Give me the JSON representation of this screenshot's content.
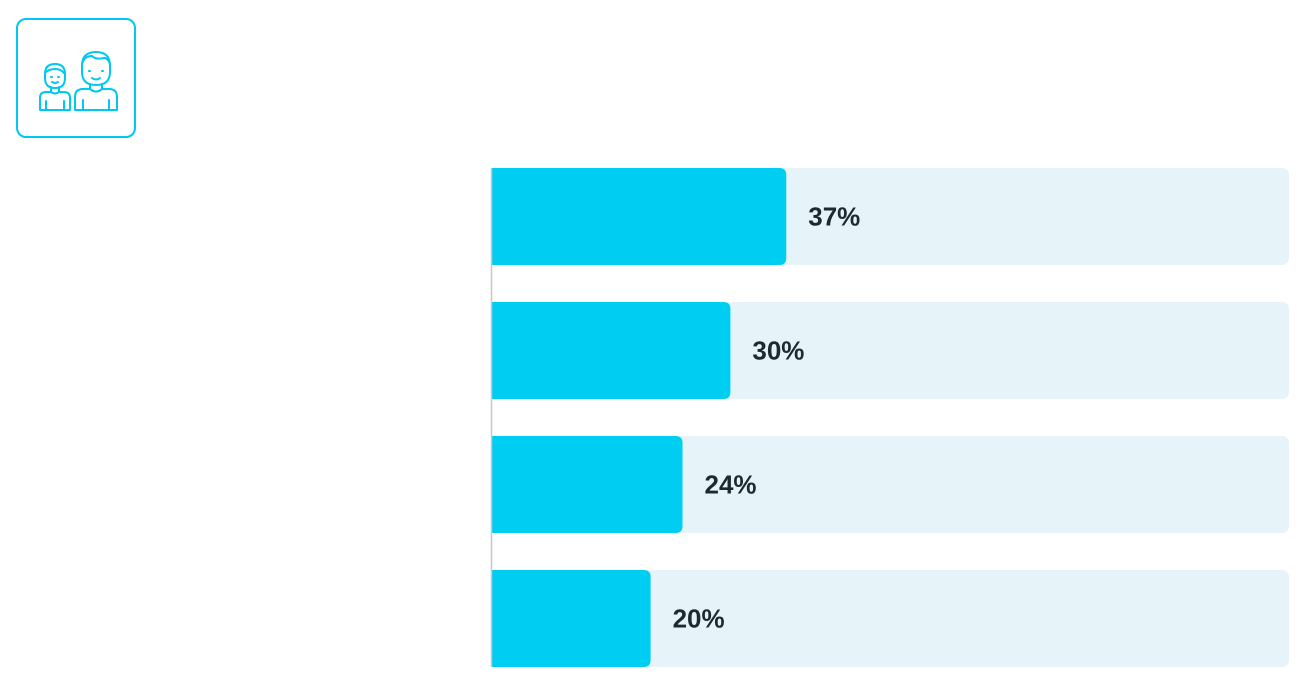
{
  "icon": {
    "name": "people-icon",
    "color": "#00c8f0"
  },
  "chart_data": {
    "type": "bar",
    "orientation": "horizontal",
    "categories": [
      "",
      "",
      "",
      ""
    ],
    "values": [
      37,
      30,
      24,
      20
    ],
    "labels": [
      "37%",
      "30%",
      "24%",
      "20%"
    ],
    "unit": "%",
    "xlim": [
      0,
      100
    ],
    "grid": false,
    "legend": "none",
    "colors": {
      "bar": "#00cdf2",
      "track": "#e6f3f8",
      "axis": "#c8c8c8",
      "label": "#1e2a2f"
    }
  }
}
